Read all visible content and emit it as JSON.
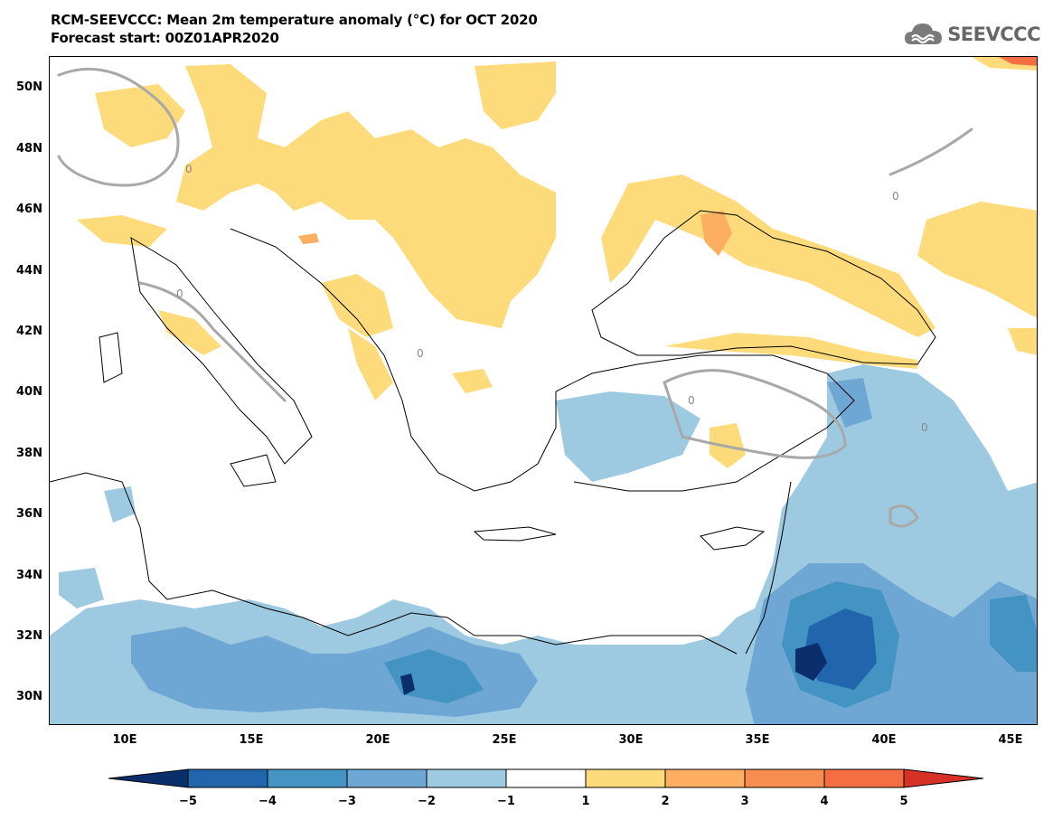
{
  "title": {
    "line1": "RCM-SEEVCCC: Mean 2m temperature anomaly (°C) for OCT 2020",
    "line2": "Forecast start: 00Z01APR2020"
  },
  "logo": {
    "text": "SEEVCCC",
    "icon": "cloud-icon"
  },
  "map": {
    "lon_range": [
      7,
      46
    ],
    "lat_range": [
      29,
      51
    ],
    "lon_ticks": [
      "10E",
      "15E",
      "20E",
      "25E",
      "30E",
      "35E",
      "40E",
      "45E"
    ],
    "lat_ticks": [
      "50N",
      "48N",
      "46N",
      "44N",
      "42N",
      "40N",
      "38N",
      "36N",
      "34N",
      "32N",
      "30N"
    ],
    "contour_label": "0"
  },
  "colorbar": {
    "tick_labels": [
      "−5",
      "−4",
      "−3",
      "−2",
      "−1",
      "1",
      "2",
      "3",
      "4",
      "5"
    ],
    "colors": [
      "#0b2f6b",
      "#2166ac",
      "#4393c3",
      "#6ea7d4",
      "#9ecae1",
      "#ffffff",
      "#fedb7a",
      "#fdae61",
      "#f88d52",
      "#f46d43",
      "#d73027"
    ]
  }
}
